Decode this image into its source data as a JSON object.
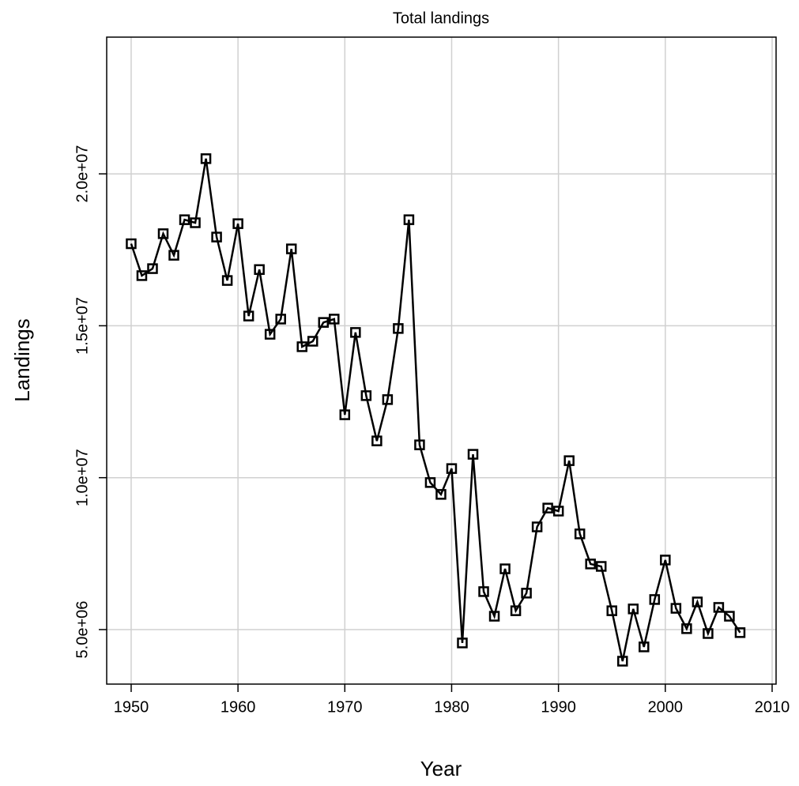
{
  "chart_data": {
    "type": "line",
    "title": "Total landings",
    "x_label": "Year",
    "y_label": "Landings",
    "x": [
      1950,
      1951,
      1952,
      1953,
      1954,
      1955,
      1956,
      1957,
      1958,
      1959,
      1960,
      1961,
      1962,
      1963,
      1964,
      1965,
      1966,
      1967,
      1968,
      1969,
      1970,
      1971,
      1972,
      1973,
      1974,
      1975,
      1976,
      1977,
      1978,
      1979,
      1980,
      1981,
      1982,
      1983,
      1984,
      1985,
      1986,
      1987,
      1988,
      1989,
      1990,
      1991,
      1992,
      1993,
      1994,
      1995,
      1996,
      1997,
      1998,
      1999,
      2000,
      2001,
      2002,
      2003,
      2004,
      2005,
      2006,
      2007
    ],
    "series": [
      {
        "name": "Landings",
        "color": "#000000",
        "values": [
          17700000,
          16650000,
          16880000,
          18030000,
          17320000,
          18490000,
          18390000,
          20500000,
          17920000,
          16490000,
          18360000,
          15320000,
          16850000,
          14720000,
          15220000,
          17530000,
          14310000,
          14490000,
          15110000,
          15220000,
          12070000,
          14780000,
          12700000,
          11210000,
          12570000,
          14910000,
          18490000,
          11080000,
          9840000,
          9450000,
          10300000,
          4560000,
          10770000,
          6250000,
          5440000,
          7000000,
          5620000,
          6200000,
          8380000,
          9000000,
          8900000,
          10560000,
          8150000,
          7160000,
          7080000,
          5620000,
          3960000,
          5680000,
          4430000,
          5990000,
          7290000,
          5700000,
          5030000,
          5910000,
          4870000,
          5730000,
          5440000,
          4900000
        ]
      }
    ],
    "xlim": [
      1947.71,
      2010.37
    ],
    "ylim": [
      3206000,
      24500000
    ],
    "xticks": [
      1950,
      1960,
      1970,
      1980,
      1990,
      2000,
      2010
    ],
    "yticks": [
      {
        "value": 5000000,
        "label": "5.0e+06"
      },
      {
        "value": 10000000,
        "label": "1.0e+07"
      },
      {
        "value": 15000000,
        "label": "1.5e+07"
      },
      {
        "value": 20000000,
        "label": "2.0e+07"
      }
    ],
    "grid": true
  }
}
